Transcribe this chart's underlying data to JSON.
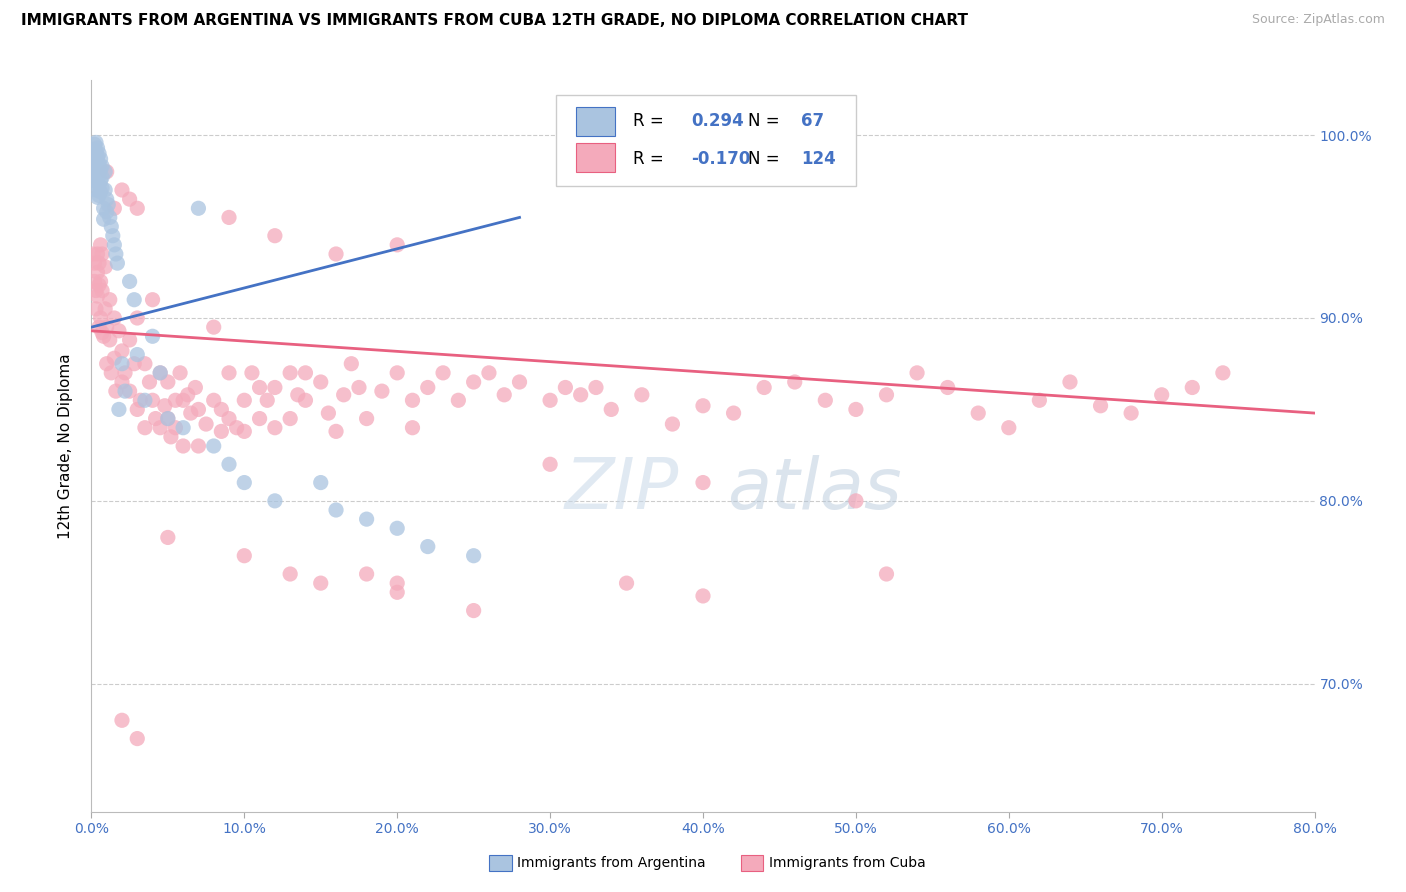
{
  "title": "IMMIGRANTS FROM ARGENTINA VS IMMIGRANTS FROM CUBA 12TH GRADE, NO DIPLOMA CORRELATION CHART",
  "source": "Source: ZipAtlas.com",
  "ylabel": "12th Grade, No Diploma",
  "right_yticks": [
    "100.0%",
    "90.0%",
    "80.0%",
    "70.0%"
  ],
  "right_ytick_vals": [
    1.0,
    0.9,
    0.8,
    0.7
  ],
  "xlim": [
    0.0,
    0.8
  ],
  "ylim": [
    0.63,
    1.03
  ],
  "argentina_color": "#aac4e0",
  "cuba_color": "#f4aabb",
  "argentina_line_color": "#4472c4",
  "cuba_line_color": "#e86080",
  "argentina_scatter": [
    [
      0.001,
      0.99
    ],
    [
      0.001,
      0.985
    ],
    [
      0.002,
      0.995
    ],
    [
      0.002,
      0.992
    ],
    [
      0.002,
      0.988
    ],
    [
      0.002,
      0.983
    ],
    [
      0.002,
      0.978
    ],
    [
      0.003,
      0.996
    ],
    [
      0.003,
      0.991
    ],
    [
      0.003,
      0.986
    ],
    [
      0.003,
      0.98
    ],
    [
      0.003,
      0.975
    ],
    [
      0.003,
      0.97
    ],
    [
      0.004,
      0.993
    ],
    [
      0.004,
      0.988
    ],
    [
      0.004,
      0.983
    ],
    [
      0.004,
      0.977
    ],
    [
      0.004,
      0.972
    ],
    [
      0.004,
      0.966
    ],
    [
      0.005,
      0.99
    ],
    [
      0.005,
      0.984
    ],
    [
      0.005,
      0.978
    ],
    [
      0.005,
      0.973
    ],
    [
      0.005,
      0.967
    ],
    [
      0.006,
      0.987
    ],
    [
      0.006,
      0.981
    ],
    [
      0.006,
      0.975
    ],
    [
      0.006,
      0.969
    ],
    [
      0.007,
      0.983
    ],
    [
      0.007,
      0.977
    ],
    [
      0.007,
      0.971
    ],
    [
      0.008,
      0.96
    ],
    [
      0.008,
      0.954
    ],
    [
      0.009,
      0.98
    ],
    [
      0.009,
      0.97
    ],
    [
      0.01,
      0.965
    ],
    [
      0.01,
      0.958
    ],
    [
      0.011,
      0.962
    ],
    [
      0.012,
      0.955
    ],
    [
      0.013,
      0.95
    ],
    [
      0.014,
      0.945
    ],
    [
      0.015,
      0.94
    ],
    [
      0.016,
      0.935
    ],
    [
      0.017,
      0.93
    ],
    [
      0.018,
      0.85
    ],
    [
      0.02,
      0.875
    ],
    [
      0.022,
      0.86
    ],
    [
      0.025,
      0.92
    ],
    [
      0.028,
      0.91
    ],
    [
      0.03,
      0.88
    ],
    [
      0.035,
      0.855
    ],
    [
      0.04,
      0.89
    ],
    [
      0.045,
      0.87
    ],
    [
      0.05,
      0.845
    ],
    [
      0.06,
      0.84
    ],
    [
      0.07,
      0.96
    ],
    [
      0.08,
      0.83
    ],
    [
      0.09,
      0.82
    ],
    [
      0.1,
      0.81
    ],
    [
      0.12,
      0.8
    ],
    [
      0.15,
      0.81
    ],
    [
      0.16,
      0.795
    ],
    [
      0.18,
      0.79
    ],
    [
      0.2,
      0.785
    ],
    [
      0.22,
      0.775
    ],
    [
      0.25,
      0.77
    ]
  ],
  "cuba_scatter": [
    [
      0.001,
      0.935
    ],
    [
      0.002,
      0.93
    ],
    [
      0.002,
      0.92
    ],
    [
      0.003,
      0.915
    ],
    [
      0.003,
      0.905
    ],
    [
      0.004,
      0.935
    ],
    [
      0.004,
      0.925
    ],
    [
      0.004,
      0.912
    ],
    [
      0.005,
      0.93
    ],
    [
      0.005,
      0.918
    ],
    [
      0.005,
      0.895
    ],
    [
      0.006,
      0.94
    ],
    [
      0.006,
      0.92
    ],
    [
      0.006,
      0.9
    ],
    [
      0.007,
      0.935
    ],
    [
      0.007,
      0.915
    ],
    [
      0.007,
      0.892
    ],
    [
      0.008,
      0.89
    ],
    [
      0.009,
      0.928
    ],
    [
      0.009,
      0.905
    ],
    [
      0.01,
      0.895
    ],
    [
      0.01,
      0.875
    ],
    [
      0.012,
      0.91
    ],
    [
      0.012,
      0.888
    ],
    [
      0.013,
      0.87
    ],
    [
      0.015,
      0.9
    ],
    [
      0.015,
      0.878
    ],
    [
      0.016,
      0.86
    ],
    [
      0.018,
      0.893
    ],
    [
      0.02,
      0.882
    ],
    [
      0.02,
      0.865
    ],
    [
      0.022,
      0.87
    ],
    [
      0.025,
      0.888
    ],
    [
      0.025,
      0.86
    ],
    [
      0.028,
      0.875
    ],
    [
      0.03,
      0.85
    ],
    [
      0.03,
      0.9
    ],
    [
      0.032,
      0.855
    ],
    [
      0.035,
      0.875
    ],
    [
      0.035,
      0.84
    ],
    [
      0.038,
      0.865
    ],
    [
      0.04,
      0.855
    ],
    [
      0.04,
      0.91
    ],
    [
      0.042,
      0.845
    ],
    [
      0.045,
      0.87
    ],
    [
      0.045,
      0.84
    ],
    [
      0.048,
      0.852
    ],
    [
      0.05,
      0.865
    ],
    [
      0.05,
      0.845
    ],
    [
      0.052,
      0.835
    ],
    [
      0.055,
      0.855
    ],
    [
      0.055,
      0.84
    ],
    [
      0.058,
      0.87
    ],
    [
      0.06,
      0.855
    ],
    [
      0.06,
      0.83
    ],
    [
      0.063,
      0.858
    ],
    [
      0.065,
      0.848
    ],
    [
      0.068,
      0.862
    ],
    [
      0.07,
      0.85
    ],
    [
      0.07,
      0.83
    ],
    [
      0.075,
      0.842
    ],
    [
      0.08,
      0.855
    ],
    [
      0.08,
      0.895
    ],
    [
      0.085,
      0.85
    ],
    [
      0.085,
      0.838
    ],
    [
      0.09,
      0.845
    ],
    [
      0.09,
      0.87
    ],
    [
      0.095,
      0.84
    ],
    [
      0.1,
      0.855
    ],
    [
      0.1,
      0.838
    ],
    [
      0.105,
      0.87
    ],
    [
      0.11,
      0.862
    ],
    [
      0.11,
      0.845
    ],
    [
      0.115,
      0.855
    ],
    [
      0.12,
      0.862
    ],
    [
      0.12,
      0.84
    ],
    [
      0.13,
      0.87
    ],
    [
      0.13,
      0.845
    ],
    [
      0.135,
      0.858
    ],
    [
      0.14,
      0.855
    ],
    [
      0.14,
      0.87
    ],
    [
      0.15,
      0.865
    ],
    [
      0.155,
      0.848
    ],
    [
      0.16,
      0.838
    ],
    [
      0.165,
      0.858
    ],
    [
      0.17,
      0.875
    ],
    [
      0.175,
      0.862
    ],
    [
      0.18,
      0.845
    ],
    [
      0.19,
      0.86
    ],
    [
      0.2,
      0.87
    ],
    [
      0.21,
      0.855
    ],
    [
      0.21,
      0.84
    ],
    [
      0.22,
      0.862
    ],
    [
      0.23,
      0.87
    ],
    [
      0.24,
      0.855
    ],
    [
      0.25,
      0.865
    ],
    [
      0.26,
      0.87
    ],
    [
      0.27,
      0.858
    ],
    [
      0.28,
      0.865
    ],
    [
      0.3,
      0.855
    ],
    [
      0.31,
      0.862
    ],
    [
      0.32,
      0.858
    ],
    [
      0.33,
      0.862
    ],
    [
      0.34,
      0.85
    ],
    [
      0.36,
      0.858
    ],
    [
      0.38,
      0.842
    ],
    [
      0.4,
      0.852
    ],
    [
      0.42,
      0.848
    ],
    [
      0.44,
      0.862
    ],
    [
      0.46,
      0.865
    ],
    [
      0.48,
      0.855
    ],
    [
      0.5,
      0.85
    ],
    [
      0.52,
      0.858
    ],
    [
      0.54,
      0.87
    ],
    [
      0.56,
      0.862
    ],
    [
      0.58,
      0.848
    ],
    [
      0.6,
      0.84
    ],
    [
      0.62,
      0.855
    ],
    [
      0.64,
      0.865
    ],
    [
      0.66,
      0.852
    ],
    [
      0.68,
      0.848
    ],
    [
      0.7,
      0.858
    ],
    [
      0.72,
      0.862
    ],
    [
      0.74,
      0.87
    ],
    [
      0.05,
      0.78
    ],
    [
      0.1,
      0.77
    ],
    [
      0.13,
      0.76
    ],
    [
      0.15,
      0.755
    ],
    [
      0.18,
      0.76
    ],
    [
      0.2,
      0.75
    ],
    [
      0.35,
      0.755
    ],
    [
      0.4,
      0.748
    ],
    [
      0.52,
      0.76
    ],
    [
      0.02,
      0.68
    ],
    [
      0.03,
      0.67
    ],
    [
      0.2,
      0.755
    ],
    [
      0.25,
      0.74
    ],
    [
      0.3,
      0.82
    ],
    [
      0.4,
      0.81
    ],
    [
      0.5,
      0.8
    ],
    [
      0.03,
      0.96
    ],
    [
      0.09,
      0.955
    ],
    [
      0.12,
      0.945
    ],
    [
      0.16,
      0.935
    ],
    [
      0.2,
      0.94
    ],
    [
      0.01,
      0.98
    ],
    [
      0.02,
      0.97
    ],
    [
      0.015,
      0.96
    ],
    [
      0.025,
      0.965
    ]
  ],
  "watermark_zip": "ZIP",
  "watermark_atlas": "atlas",
  "argentina_trend_x": [
    0.0,
    0.28
  ],
  "argentina_trend_y": [
    0.895,
    0.955
  ],
  "cuba_trend_x": [
    0.0,
    0.8
  ],
  "cuba_trend_y": [
    0.893,
    0.848
  ]
}
